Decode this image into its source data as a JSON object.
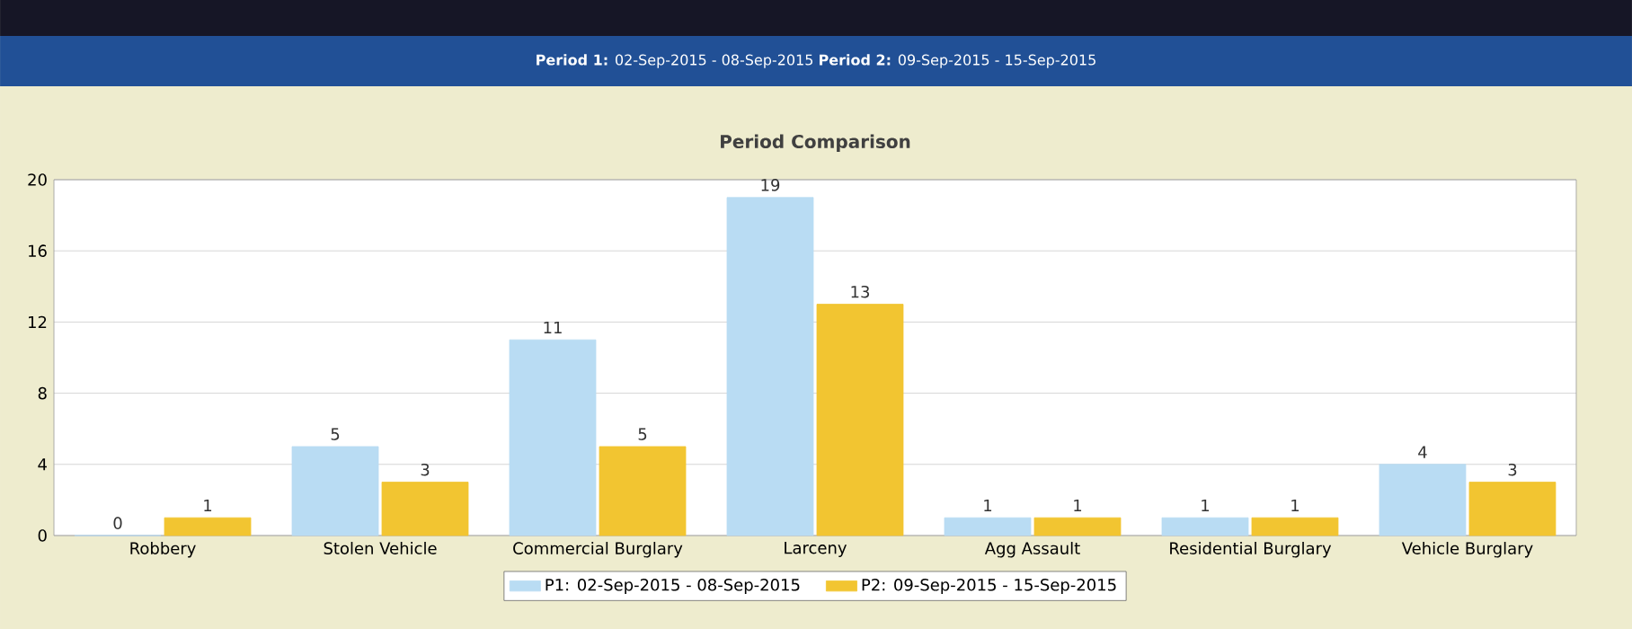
{
  "chart_data": {
    "type": "bar",
    "title": "Period Comparison",
    "subtitle": "**Period 1:** 02-Sep-2015 - 08-Sep-2015   **Period 2:** 09-Sep-2015 - 15-Sep-2015",
    "categories": [
      "Robbery",
      "Stolen Vehicle",
      "Commercial Burglary",
      "Larceny",
      "Agg Assault",
      "Residential Burglary",
      "Vehicle Burglary"
    ],
    "series": [
      {
        "name": "P1: 02-Sep-2015 - 08-Sep-2015",
        "color": "#b9dcf3",
        "values": [
          0,
          5,
          11,
          19,
          1,
          1,
          4
        ]
      },
      {
        "name": "P2: 09-Sep-2015 - 15-Sep-2015",
        "color": "#f2c531",
        "values": [
          1,
          3,
          5,
          13,
          1,
          1,
          3
        ]
      }
    ],
    "ylim": [
      0,
      20
    ],
    "yticks": [
      0,
      4,
      8,
      12,
      16,
      20
    ],
    "grid": "y",
    "legend": "bottom",
    "data_labels": true
  }
}
